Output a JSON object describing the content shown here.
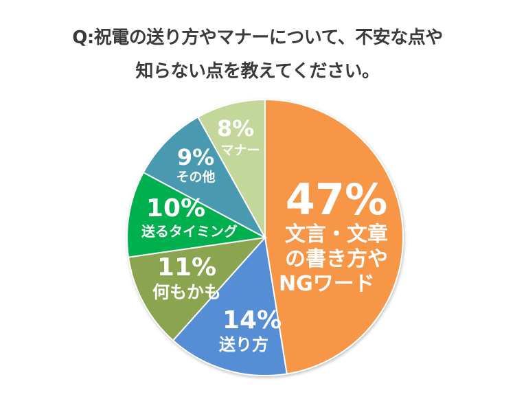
{
  "title": {
    "line1": "Q:祝電の送り方やマナーについて、不安な点や",
    "line2": "知らない点を教えてください。"
  },
  "chart_data": {
    "type": "pie",
    "title": "Q:祝電の送り方やマナーについて、不安な点や知らない点を教えてください。",
    "start_angle": "12 o'clock",
    "direction": "clockwise",
    "categories": [
      "文言・文章の書き方やNGワード",
      "送り方",
      "何もかも",
      "送るタイミング",
      "その他",
      "マナー"
    ],
    "values": [
      47,
      14,
      11,
      10,
      9,
      8
    ],
    "unit": "%",
    "colors": [
      "#F79646",
      "#558ED5",
      "#8BA44F",
      "#00B050",
      "#4A9AB0",
      "#C4D79B"
    ],
    "labels": [
      {
        "pct": "47%",
        "cat_lines": [
          "文言・文章",
          "の書き方や",
          "NGワード"
        ]
      },
      {
        "pct": "14%",
        "cat_lines": [
          "送り方"
        ]
      },
      {
        "pct": "11%",
        "cat_lines": [
          "何もかも"
        ]
      },
      {
        "pct": "10%",
        "cat_lines": [
          "送るタイミング"
        ]
      },
      {
        "pct": "9%",
        "cat_lines": [
          "その他"
        ]
      },
      {
        "pct": "8%",
        "cat_lines": [
          "マナー"
        ]
      }
    ],
    "legend": "none"
  }
}
